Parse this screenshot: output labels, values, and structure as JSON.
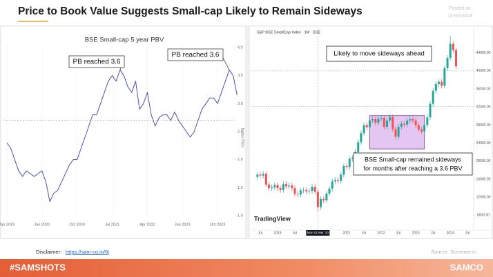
{
  "header": {
    "title": "Price to Book Value Suggests Small-cap Likely to Remain Sideways",
    "posted_label": "Posted on",
    "posted_date": "14-03-2024"
  },
  "footer": {
    "disclaimer_label": "Disclaimer:",
    "disclaimer_link": "https://sam-co.in/6j",
    "source": "Source: Screener.in",
    "hashtag": "#SAMSHOTS",
    "brand": "SAMCO"
  },
  "chart_data": [
    {
      "type": "line",
      "title": "BSE Small-cap 5 year PBV",
      "y_label": "Index PBV",
      "color": "#4b4fb0",
      "x": [
        "Apr 2019",
        "May 2019",
        "Jun 2019",
        "Jul 2019",
        "Aug 2019",
        "Sep 2019",
        "Oct 2019",
        "Nov 2019",
        "Dec 2019",
        "Jan 2020",
        "Feb 2020",
        "Mar 2020",
        "Apr 2020",
        "May 2020",
        "Jun 2020",
        "Jul 2020",
        "Aug 2020",
        "Sep 2020",
        "Oct 2020",
        "Nov 2020",
        "Dec 2020",
        "Jan 2021",
        "Feb 2021",
        "Mar 2021",
        "Apr 2021",
        "May 2021",
        "Jun 2021",
        "Jul 2021",
        "Aug 2021",
        "Sep 2021",
        "Oct 2021",
        "Nov 2021",
        "Dec 2021",
        "Jan 2022",
        "Feb 2022",
        "Mar 2022",
        "Apr 2022",
        "May 2022",
        "Jun 2022",
        "Jul 2022",
        "Aug 2022",
        "Sep 2022",
        "Oct 2022",
        "Nov 2022",
        "Dec 2022",
        "Jan 2023",
        "Feb 2023",
        "Mar 2023",
        "Apr 2023",
        "May 2023",
        "Jun 2023",
        "Jul 2023",
        "Aug 2023",
        "Sep 2023",
        "Oct 2023",
        "Nov 2023",
        "Dec 2023",
        "Jan 2024",
        "Feb 2024",
        "Mar 2024"
      ],
      "values": [
        2.3,
        2.2,
        2.0,
        1.8,
        1.7,
        1.8,
        1.75,
        1.7,
        1.75,
        1.8,
        1.6,
        1.25,
        1.4,
        1.45,
        1.6,
        1.75,
        1.9,
        2.0,
        2.0,
        2.2,
        2.4,
        2.6,
        2.8,
        2.8,
        3.0,
        3.2,
        3.4,
        3.5,
        3.4,
        3.6,
        3.5,
        3.3,
        3.2,
        3.4,
        2.9,
        3.0,
        3.2,
        2.8,
        2.6,
        2.75,
        2.8,
        2.8,
        2.7,
        2.85,
        2.7,
        2.6,
        2.5,
        2.4,
        2.5,
        2.7,
        2.9,
        3.0,
        3.1,
        3.1,
        3.0,
        3.2,
        3.4,
        3.6,
        3.5,
        3.15
      ],
      "xticks": [
        "Apr 2019",
        "Jan 2020",
        "Oct 2020",
        "Jul 2021",
        "Apr 2022",
        "Jan 2023",
        "Oct 2023"
      ],
      "ylim": [
        1,
        4
      ],
      "yticks": [
        {
          "value": 1,
          "label": "1.0"
        },
        1.5,
        {
          "value": 2,
          "label": "2.0"
        },
        2.5,
        {
          "value": 3,
          "label": "3.0"
        },
        3.5,
        {
          "value": 4,
          "label": "4.0"
        }
      ],
      "reference_line": 2.7,
      "annotations": [
        {
          "text": "PB reached 3.6",
          "x": "Sep 2021",
          "y": 3.6
        },
        {
          "text": "PB reached 3.6",
          "x": "Jan 2024",
          "y": 3.6
        }
      ]
    },
    {
      "type": "candlestick",
      "title": "S&P BSE SmallCap Index · 1M · BSE",
      "watermark": "TradingView",
      "up_color": "#26a69a",
      "down_color": "#ef5350",
      "x": [
        "Jun 2018",
        "Jul 2018",
        "Aug 2018",
        "Sep 2018",
        "Oct 2018",
        "Nov 2018",
        "Dec 2018",
        "Jan 2019",
        "Feb 2019",
        "Mar 2019",
        "Apr 2019",
        "May 2019",
        "Jun 2019",
        "Jul 2019",
        "Aug 2019",
        "Sep 2019",
        "Oct 2019",
        "Nov 2019",
        "Dec 2019",
        "Jan 2020",
        "Feb 2020",
        "Mar 2020",
        "Apr 2020",
        "May 2020",
        "Jun 2020",
        "Jul 2020",
        "Aug 2020",
        "Sep 2020",
        "Oct 2020",
        "Nov 2020",
        "Dec 2020",
        "Jan 2021",
        "Feb 2021",
        "Mar 2021",
        "Apr 2021",
        "May 2021",
        "Jun 2021",
        "Jul 2021",
        "Aug 2021",
        "Sep 2021",
        "Oct 2021",
        "Nov 2021",
        "Dec 2021",
        "Jan 2022",
        "Feb 2022",
        "Mar 2022",
        "Apr 2022",
        "May 2022",
        "Jun 2022",
        "Jul 2022",
        "Aug 2022",
        "Sep 2022",
        "Oct 2022",
        "Nov 2022",
        "Dec 2022",
        "Jan 2023",
        "Feb 2023",
        "Mar 2023",
        "Apr 2023",
        "May 2023",
        "Jun 2023",
        "Jul 2023",
        "Aug 2023",
        "Sep 2023",
        "Oct 2023",
        "Nov 2023",
        "Dec 2023",
        "Jan 2024",
        "Feb 2024",
        "Mar 2024",
        "Apr 2024",
        "May 2024",
        "Jun 2024",
        "Jul 2024"
      ],
      "open": [
        16500,
        17000,
        16800,
        17200,
        14800,
        14000,
        14200,
        14700,
        14000,
        13600,
        14900,
        14400,
        14600,
        14000,
        12700,
        12600,
        13500,
        13600,
        13300,
        13400,
        14300,
        13200,
        9800,
        11600,
        11300,
        12800,
        13900,
        15500,
        15800,
        15600,
        17000,
        18900,
        18700,
        20500,
        20700,
        22000,
        24200,
        26200,
        28000,
        27500,
        29000,
        29300,
        28500,
        29400,
        29600,
        27600,
        29000,
        29800,
        27100,
        25400,
        27600,
        28300,
        28100,
        29000,
        29300,
        29000,
        28000,
        27000,
        26600,
        28000,
        29700,
        32700,
        35600,
        37100,
        37600,
        36700,
        40600,
        42900,
        46000,
        44600,
        null,
        null,
        null,
        null
      ],
      "high": [
        17600,
        17600,
        17800,
        17800,
        15400,
        14800,
        15300,
        15300,
        14600,
        15500,
        15500,
        15200,
        15200,
        14600,
        13300,
        14100,
        14200,
        14200,
        14000,
        14900,
        14900,
        13800,
        12200,
        12200,
        13400,
        14500,
        16100,
        16400,
        16400,
        17600,
        19500,
        19500,
        21100,
        21300,
        22600,
        24800,
        26800,
        28600,
        28600,
        29600,
        29900,
        29900,
        30000,
        30200,
        30200,
        29600,
        30400,
        30400,
        27700,
        28200,
        28900,
        28900,
        29600,
        29900,
        29900,
        29600,
        28600,
        27600,
        28600,
        30300,
        33300,
        36200,
        37700,
        38200,
        38200,
        41200,
        43500,
        47700,
        46600,
        45200,
        null,
        null,
        null,
        null
      ],
      "low": [
        15900,
        16200,
        16200,
        14200,
        13400,
        13400,
        13600,
        13400,
        13000,
        13000,
        13800,
        13800,
        13400,
        12100,
        12000,
        12000,
        12900,
        12700,
        12700,
        12800,
        12600,
        8800,
        9200,
        10700,
        10700,
        12200,
        13300,
        14900,
        15000,
        15000,
        16400,
        18100,
        18100,
        19900,
        20100,
        21400,
        23600,
        25600,
        26900,
        26900,
        28400,
        27900,
        27900,
        28800,
        27000,
        27000,
        28400,
        26500,
        24800,
        24800,
        27000,
        27500,
        27500,
        28400,
        28400,
        27400,
        26400,
        26000,
        26000,
        27400,
        29100,
        32100,
        35000,
        36500,
        36100,
        36100,
        40000,
        42300,
        44000,
        40400,
        null,
        null,
        null,
        null
      ],
      "close": [
        17000,
        16800,
        17200,
        14800,
        14000,
        14200,
        14700,
        14000,
        13600,
        14900,
        14400,
        14600,
        14000,
        12700,
        12600,
        13500,
        13600,
        13300,
        13400,
        14300,
        13200,
        9800,
        11600,
        11300,
        12800,
        13900,
        15500,
        15800,
        15600,
        17000,
        18900,
        18700,
        20500,
        20700,
        22000,
        24200,
        26200,
        28000,
        27500,
        29000,
        29300,
        28500,
        29400,
        29600,
        27600,
        29000,
        29800,
        27100,
        25400,
        27600,
        28300,
        28100,
        29000,
        29300,
        29000,
        28000,
        27000,
        26600,
        28000,
        29700,
        32700,
        35600,
        37100,
        37600,
        36700,
        40600,
        42900,
        46000,
        44600,
        41000,
        null,
        null,
        null,
        null
      ],
      "xticks": [
        {
          "value": "Jul 2018",
          "label": "Jul"
        },
        {
          "value": "Jan 2019",
          "label": "2019"
        },
        {
          "value": "Jul 2019",
          "label": "Jul"
        },
        {
          "value": "Mar 2020",
          "label": "Mon 02 Mar '20"
        },
        {
          "value": "Jan 2021",
          "label": "2021"
        },
        {
          "value": "Jul 2021",
          "label": "Jul"
        },
        {
          "value": "Jan 2022",
          "label": "2022"
        },
        {
          "value": "Jul 2022",
          "label": "Jul"
        },
        {
          "value": "Jan 2023",
          "label": "2023"
        },
        {
          "value": "Jul 2023",
          "label": "Jul"
        },
        {
          "value": "Jan 2024",
          "label": "2024"
        },
        {
          "value": "Jul 2024",
          "label": "Jul"
        }
      ],
      "ylim": [
        5000,
        49000
      ],
      "yticks": [
        {
          "value": 8000,
          "label": "8000.00"
        },
        {
          "value": 12000,
          "label": "12000.00"
        },
        {
          "value": 16000,
          "label": "16000.00"
        },
        {
          "value": 20000,
          "label": "20000.00"
        },
        {
          "value": 24000,
          "label": "24000.00"
        },
        {
          "value": 28000,
          "label": "28000.00"
        },
        {
          "value": 32000,
          "label": "32000.00"
        },
        {
          "value": 36000,
          "label": "36000.00"
        },
        {
          "value": 40000,
          "label": "40000.00"
        },
        {
          "value": 44000,
          "label": "44000.00"
        }
      ],
      "price_lines": [
        40000,
        32100
      ],
      "highlight": {
        "x": [
          "Sep 2021",
          "Apr 2023"
        ],
        "y": [
          22700,
          30100
        ]
      },
      "annotations": [
        {
          "lines": [
            "Likely to move sideways ahead"
          ]
        },
        {
          "lines": [
            "BSE Small-cap remained sideways",
            "for months after reaching a 3.6 PBV"
          ]
        }
      ]
    }
  ]
}
